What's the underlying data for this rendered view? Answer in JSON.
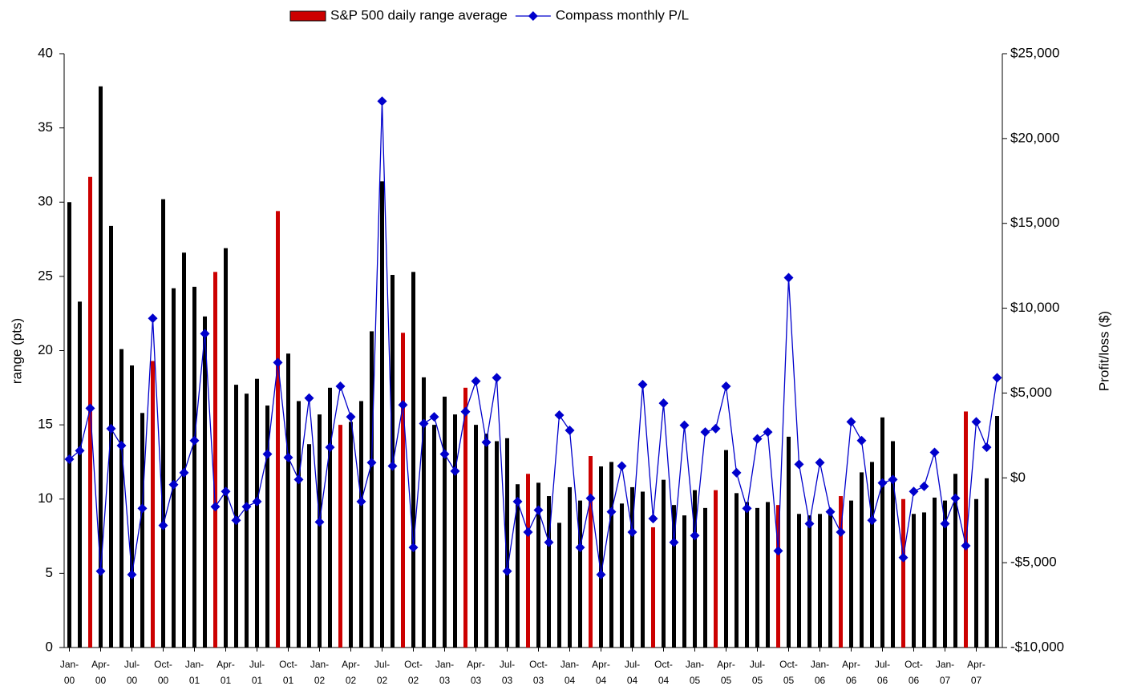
{
  "chart_data": {
    "type": "bar_line",
    "legend": "top",
    "ylabel": "range (pts)",
    "y2label": "Profit/loss ($)",
    "categories": [
      "Jan-00",
      null,
      null,
      "Apr-00",
      null,
      null,
      "Jul-00",
      null,
      null,
      "Oct-00",
      null,
      null,
      "Jan-01",
      null,
      null,
      "Apr-01",
      null,
      null,
      "Jul-01",
      null,
      null,
      "Oct-01",
      null,
      null,
      "Jan-02",
      null,
      null,
      "Apr-02",
      null,
      null,
      "Jul-02",
      null,
      null,
      "Oct-02",
      null,
      null,
      "Jan-03",
      null,
      null,
      "Apr-03",
      null,
      null,
      "Jul-03",
      null,
      null,
      "Oct-03",
      null,
      null,
      "Jan-04",
      null,
      null,
      "Apr-04",
      null,
      null,
      "Jul-04",
      null,
      null,
      "Oct-04",
      null,
      null,
      "Jan-05",
      null,
      null,
      "Apr-05",
      null,
      null,
      "Jul-05",
      null,
      null,
      "Oct-05",
      null,
      null,
      "Jan-06",
      null,
      null,
      "Apr-06",
      null,
      null,
      "Jul-06",
      null,
      null,
      "Oct-06",
      null,
      null,
      "Jan-07",
      null,
      null,
      "Apr-07",
      null,
      null
    ],
    "ylim": [
      0,
      40
    ],
    "yticks": [
      0,
      5,
      10,
      15,
      20,
      25,
      30,
      35,
      40
    ],
    "y2lim": [
      -10000,
      25000
    ],
    "y2ticks": [
      {
        "value": -10000,
        "label": "-$10,000"
      },
      {
        "value": -5000,
        "label": "-$5,000"
      },
      {
        "value": 0,
        "label": "$0"
      },
      {
        "value": 5000,
        "label": "$5,000"
      },
      {
        "value": 10000,
        "label": "$10,000"
      },
      {
        "value": 15000,
        "label": "$15,000"
      },
      {
        "value": 20000,
        "label": "$20,000"
      },
      {
        "value": 25000,
        "label": "$25,000"
      }
    ],
    "series": [
      {
        "name": "S&P 500 daily range average",
        "type": "bar",
        "color": "#cc0000",
        "colors": [
          "#000000",
          "#000000",
          "#cc0000",
          "#000000",
          "#000000",
          "#000000",
          "#000000",
          "#000000",
          "#cc0000",
          "#000000",
          "#000000",
          "#000000",
          "#000000",
          "#000000",
          "#cc0000",
          "#000000",
          "#000000",
          "#000000",
          "#000000",
          "#000000",
          "#cc0000",
          "#000000",
          "#000000",
          "#000000",
          "#000000",
          "#000000",
          "#cc0000",
          "#000000",
          "#000000",
          "#000000",
          "#000000",
          "#000000",
          "#cc0000",
          "#000000",
          "#000000",
          "#000000",
          "#000000",
          "#000000",
          "#cc0000",
          "#000000",
          "#000000",
          "#000000",
          "#000000",
          "#000000",
          "#cc0000",
          "#000000",
          "#000000",
          "#000000",
          "#000000",
          "#000000",
          "#cc0000",
          "#000000",
          "#000000",
          "#000000",
          "#000000",
          "#000000",
          "#cc0000",
          "#000000",
          "#000000",
          "#000000",
          "#000000",
          "#000000",
          "#cc0000",
          "#000000",
          "#000000",
          "#000000",
          "#000000",
          "#000000",
          "#cc0000",
          "#000000",
          "#000000",
          "#000000",
          "#000000",
          "#000000",
          "#cc0000",
          "#000000",
          "#000000",
          "#000000",
          "#000000",
          "#000000",
          "#cc0000",
          "#000000",
          "#000000",
          "#000000",
          "#000000",
          "#000000",
          "#cc0000",
          "#000000",
          "#000000",
          "#000000"
        ],
        "values": [
          30.0,
          23.3,
          31.7,
          37.8,
          28.4,
          20.1,
          19.0,
          15.8,
          19.3,
          30.2,
          24.2,
          26.6,
          24.3,
          22.3,
          25.3,
          26.9,
          17.7,
          17.1,
          18.1,
          16.3,
          29.4,
          19.8,
          16.6,
          13.7,
          15.7,
          17.5,
          15.0,
          15.2,
          16.6,
          21.3,
          31.4,
          25.1,
          21.2,
          25.3,
          18.2,
          15.0,
          16.9,
          15.7,
          17.5,
          15.0,
          14.4,
          13.9,
          14.1,
          11.0,
          11.7,
          11.1,
          10.2,
          8.4,
          10.8,
          9.9,
          12.9,
          12.2,
          12.5,
          9.7,
          10.8,
          10.5,
          8.1,
          11.3,
          9.6,
          8.9,
          10.6,
          9.4,
          10.6,
          13.3,
          10.4,
          9.8,
          9.4,
          9.8,
          9.6,
          14.2,
          9.0,
          8.9,
          9.0,
          9.1,
          10.2,
          9.9,
          11.8,
          12.5,
          15.5,
          13.9,
          10.0,
          9.0,
          9.1,
          10.1,
          9.9,
          11.7,
          15.9,
          10.0,
          11.4,
          15.6
        ]
      },
      {
        "name": "Compass monthly P/L",
        "type": "line",
        "axis": "y2",
        "color": "#0000cc",
        "values": [
          1100,
          1600,
          4100,
          -5500,
          2900,
          1900,
          -5700,
          -1800,
          9400,
          -2800,
          -400,
          300,
          2200,
          8500,
          -1700,
          -800,
          -2500,
          -1700,
          -1400,
          1400,
          6800,
          1200,
          -100,
          4700,
          -2600,
          1800,
          5400,
          3600,
          -1400,
          900,
          22200,
          700,
          4300,
          -4100,
          3200,
          3600,
          1400,
          400,
          3900,
          5700,
          2100,
          5900,
          -5500,
          -1400,
          -3200,
          -1900,
          -3800,
          3700,
          2800,
          -4100,
          -1200,
          -5700,
          -2000,
          700,
          -3200,
          5500,
          -2400,
          4400,
          -3800,
          3100,
          -3400,
          2700,
          2900,
          5400,
          300,
          -1800,
          2300,
          2700,
          -4300,
          11800,
          800,
          -2700,
          900,
          -2000,
          -3200,
          3300,
          2200,
          -2500,
          -300,
          -100,
          -4700,
          -800,
          -500,
          1500,
          -2700,
          -1200,
          -4000,
          3300,
          1800,
          5900
        ]
      }
    ]
  }
}
